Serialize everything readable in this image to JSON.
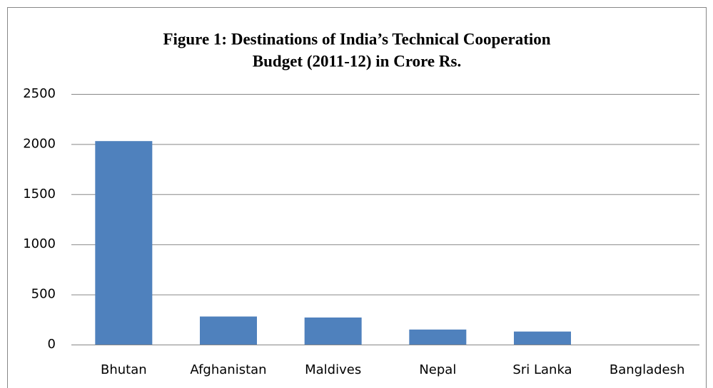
{
  "chart_data": {
    "type": "bar",
    "title_lines": [
      "Figure 1: Destinations of India’s Technical Cooperation",
      "Budget (2011-12) in Crore Rs."
    ],
    "categories": [
      "Bhutan",
      "Afghanistan",
      "Maldives",
      "Nepal",
      "Sri Lanka",
      "Bangladesh"
    ],
    "values": [
      2030,
      280,
      270,
      150,
      130,
      0
    ],
    "color": "#4f81bd",
    "ylim": [
      0,
      2500
    ],
    "yticks": [
      0,
      500,
      1000,
      1500,
      2000,
      2500
    ],
    "grid": true
  }
}
